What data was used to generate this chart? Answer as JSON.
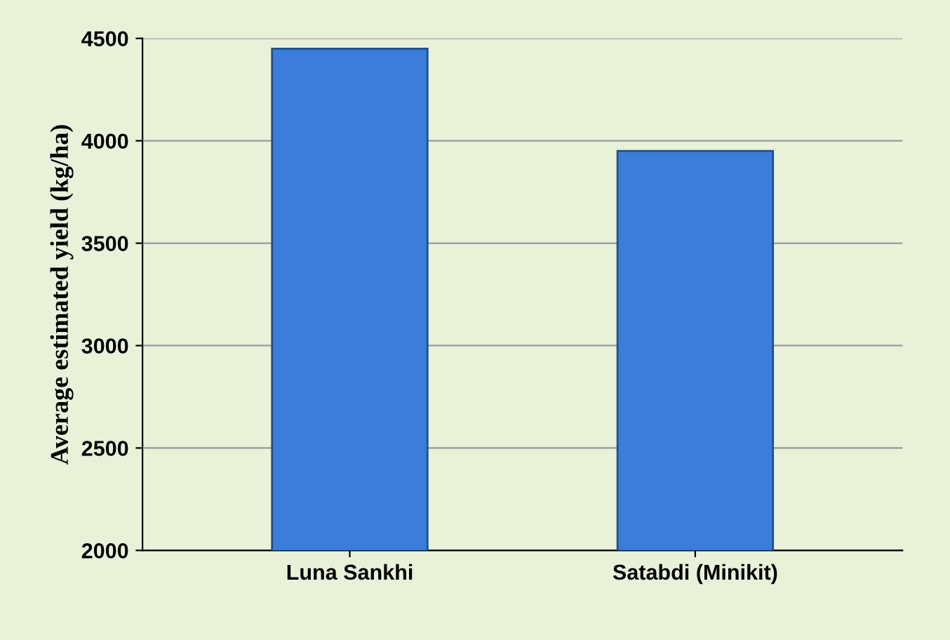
{
  "chart_data": {
    "type": "bar",
    "ylabel": "Average estimated yield (kg/ha)",
    "categories": [
      "Luna Sankhi",
      "Satabdi (Minikit)"
    ],
    "values": [
      4450,
      3950
    ],
    "color": "#3b7dd8",
    "ylim": [
      2000,
      4500
    ],
    "yticks": [
      2000,
      2500,
      3000,
      3500,
      4000,
      4500
    ],
    "grid": "y"
  }
}
